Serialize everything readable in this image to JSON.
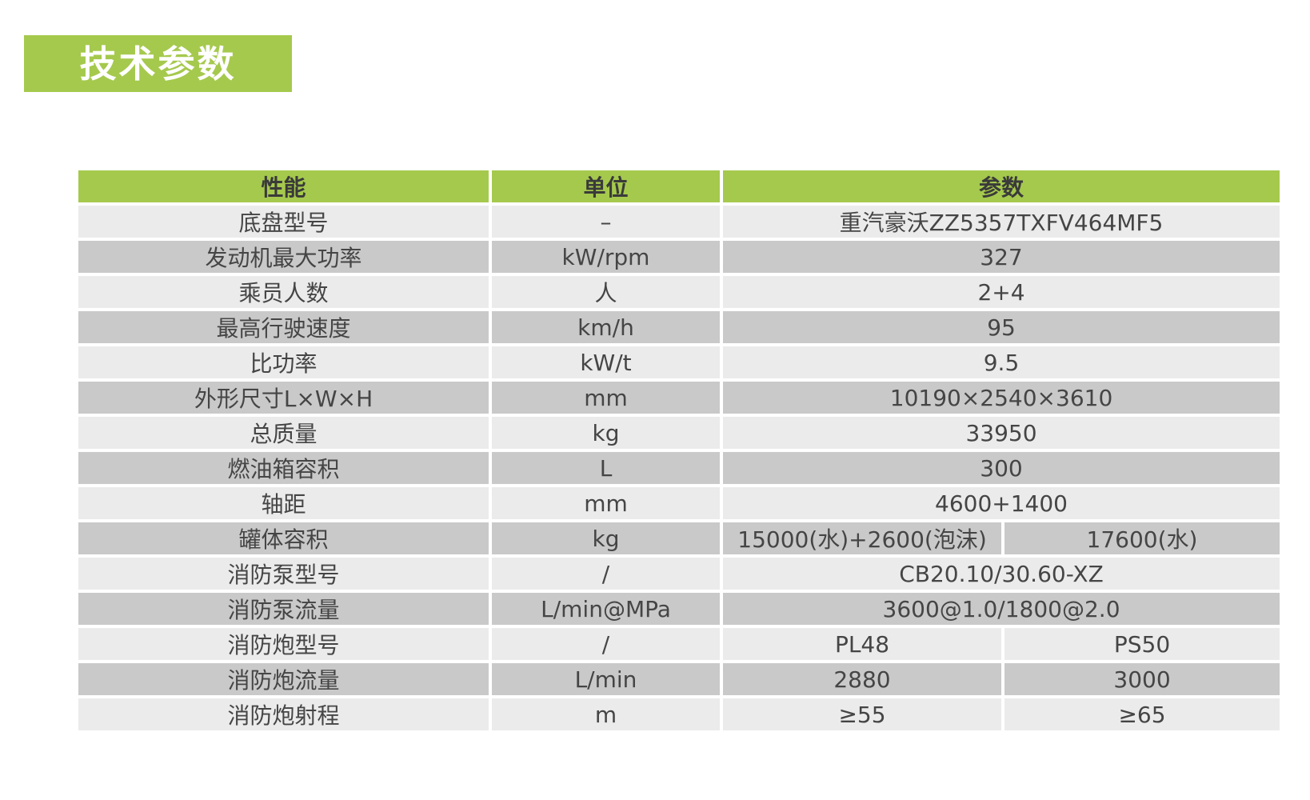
{
  "title": {
    "label": "技术参数"
  },
  "colors": {
    "green": "#a5c94d",
    "row_light": "#ebebeb",
    "row_dark": "#c9c9c9",
    "cell_text": "#454545",
    "header_text": "#3a3a3a",
    "title_text": "#ffffff"
  },
  "table": {
    "headers": [
      "性能",
      "单位",
      "参数"
    ],
    "rows": [
      {
        "name": "底盘型号",
        "unit": "–",
        "values": [
          "重汽豪沃ZZ5357TXFV464MF5"
        ]
      },
      {
        "name": "发动机最大功率",
        "unit": "kW/rpm",
        "values": [
          "327"
        ]
      },
      {
        "name": "乘员人数",
        "unit": "人",
        "values": [
          "2+4"
        ]
      },
      {
        "name": "最高行驶速度",
        "unit": "km/h",
        "values": [
          "95"
        ]
      },
      {
        "name": "比功率",
        "unit": "kW/t",
        "values": [
          "9.5"
        ]
      },
      {
        "name": "外形尺寸L×W×H",
        "unit": "mm",
        "values": [
          "10190×2540×3610"
        ]
      },
      {
        "name": "总质量",
        "unit": "kg",
        "values": [
          "33950"
        ]
      },
      {
        "name": "燃油箱容积",
        "unit": "L",
        "values": [
          "300"
        ]
      },
      {
        "name": "轴距",
        "unit": "mm",
        "values": [
          "4600+1400"
        ]
      },
      {
        "name": "罐体容积",
        "unit": "kg",
        "values": [
          "15000(水)+2600(泡沫)",
          "17600(水)"
        ]
      },
      {
        "name": "消防泵型号",
        "unit": "/",
        "values": [
          "CB20.10/30.60-XZ"
        ]
      },
      {
        "name": "消防泵流量",
        "unit": "L/min@MPa",
        "values": [
          "3600@1.0/1800@2.0"
        ]
      },
      {
        "name": "消防炮型号",
        "unit": "/",
        "values": [
          "PL48",
          "PS50"
        ]
      },
      {
        "name": "消防炮流量",
        "unit": "L/min",
        "values": [
          "2880",
          "3000"
        ]
      },
      {
        "name": "消防炮射程",
        "unit": "m",
        "values": [
          "≥55",
          "≥65"
        ]
      }
    ]
  }
}
